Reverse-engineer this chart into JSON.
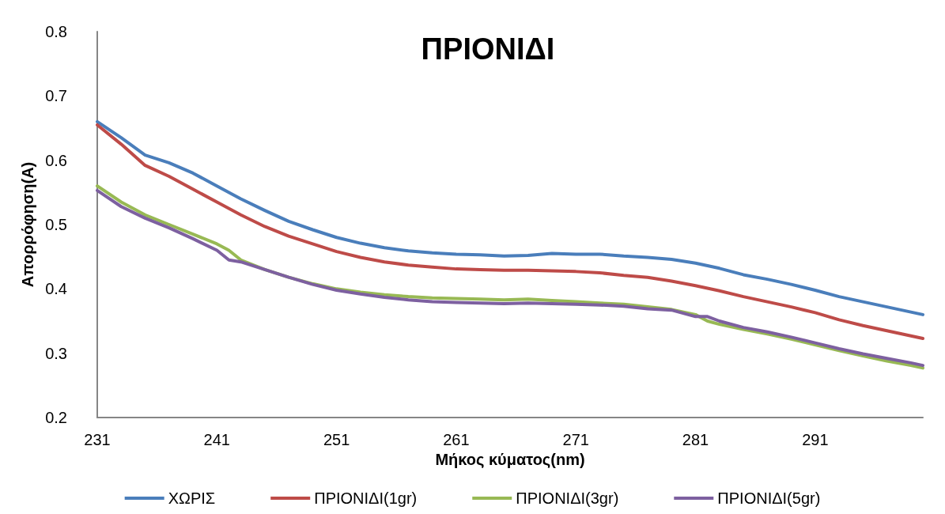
{
  "chart_data": {
    "type": "line",
    "title": "ΠΡΙΟΝΙΔΙ",
    "xlabel": "Μήκος κύματος(nm)",
    "ylabel": "Απορρόφηση(A)",
    "xlim": [
      231,
      300
    ],
    "xticks": [
      231,
      241,
      251,
      261,
      271,
      281,
      291
    ],
    "ylim": [
      0.2,
      0.8
    ],
    "yticks": [
      0.2,
      0.3,
      0.4,
      0.5,
      0.6,
      0.7,
      0.8
    ],
    "grid": false,
    "legend": "bottom",
    "marker": "none",
    "line_style": "solid",
    "series": [
      {
        "name": "ΧΩΡΙΣ",
        "color": "#4a7ebb",
        "x": [
          231,
          233,
          235,
          237,
          239,
          241,
          243,
          245,
          247,
          249,
          251,
          253,
          255,
          257,
          259,
          261,
          263,
          265,
          267,
          269,
          271,
          273,
          275,
          277,
          279,
          281,
          283,
          285,
          287,
          289,
          291,
          293,
          295,
          297,
          299,
          300
        ],
        "values": [
          0.66,
          0.635,
          0.608,
          0.596,
          0.58,
          0.56,
          0.54,
          0.522,
          0.505,
          0.492,
          0.48,
          0.471,
          0.464,
          0.459,
          0.456,
          0.454,
          0.453,
          0.451,
          0.452,
          0.455,
          0.454,
          0.454,
          0.451,
          0.449,
          0.446,
          0.44,
          0.432,
          0.422,
          0.415,
          0.407,
          0.398,
          0.388,
          0.38,
          0.372,
          0.364,
          0.36
        ]
      },
      {
        "name": "ΠΡΙΟΝΙΔΙ(1gr)",
        "color": "#be4b48",
        "x": [
          231,
          233,
          235,
          237,
          239,
          241,
          243,
          245,
          247,
          249,
          251,
          253,
          255,
          257,
          259,
          261,
          263,
          265,
          267,
          269,
          271,
          273,
          275,
          277,
          279,
          281,
          283,
          285,
          287,
          289,
          291,
          293,
          295,
          297,
          299,
          300
        ],
        "values": [
          0.655,
          0.625,
          0.592,
          0.575,
          0.555,
          0.535,
          0.515,
          0.497,
          0.482,
          0.47,
          0.458,
          0.449,
          0.442,
          0.437,
          0.434,
          0.431,
          0.43,
          0.429,
          0.429,
          0.428,
          0.427,
          0.425,
          0.421,
          0.418,
          0.412,
          0.405,
          0.397,
          0.388,
          0.38,
          0.372,
          0.363,
          0.352,
          0.343,
          0.335,
          0.327,
          0.323
        ]
      },
      {
        "name": "ΠΡΙΟΝΙΔΙ(3gr)",
        "color": "#98b954",
        "x": [
          231,
          233,
          235,
          237,
          239,
          241,
          242,
          243,
          245,
          247,
          249,
          251,
          253,
          255,
          257,
          259,
          261,
          263,
          265,
          267,
          269,
          271,
          273,
          275,
          277,
          279,
          281,
          282,
          283,
          285,
          287,
          289,
          291,
          293,
          295,
          297,
          299,
          300
        ],
        "values": [
          0.56,
          0.535,
          0.515,
          0.5,
          0.485,
          0.47,
          0.46,
          0.445,
          0.43,
          0.418,
          0.408,
          0.4,
          0.395,
          0.391,
          0.388,
          0.386,
          0.385,
          0.384,
          0.383,
          0.384,
          0.382,
          0.38,
          0.378,
          0.376,
          0.372,
          0.368,
          0.36,
          0.35,
          0.345,
          0.337,
          0.33,
          0.322,
          0.313,
          0.304,
          0.296,
          0.288,
          0.281,
          0.277
        ]
      },
      {
        "name": "ΠΡΙΟΝΙΔΙ(5gr)",
        "color": "#7d60a0",
        "x": [
          231,
          233,
          235,
          237,
          239,
          241,
          242,
          243,
          245,
          247,
          249,
          251,
          253,
          255,
          257,
          259,
          261,
          263,
          265,
          267,
          269,
          271,
          273,
          275,
          277,
          279,
          281,
          282,
          283,
          285,
          287,
          289,
          291,
          293,
          295,
          297,
          299,
          300
        ],
        "values": [
          0.553,
          0.528,
          0.51,
          0.495,
          0.478,
          0.46,
          0.445,
          0.442,
          0.43,
          0.418,
          0.407,
          0.398,
          0.392,
          0.387,
          0.383,
          0.38,
          0.379,
          0.378,
          0.377,
          0.378,
          0.377,
          0.376,
          0.375,
          0.373,
          0.369,
          0.367,
          0.357,
          0.357,
          0.35,
          0.34,
          0.333,
          0.325,
          0.316,
          0.307,
          0.299,
          0.292,
          0.285,
          0.281
        ]
      }
    ]
  }
}
